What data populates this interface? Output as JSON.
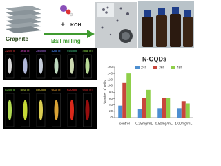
{
  "labels": {
    "graphite": "Graphite",
    "plus": "+",
    "koh": "KOH",
    "process": "Ball milling",
    "product": "N-GQDs",
    "excitation_row1": [
      "325nm",
      "365nm",
      "385nm",
      "425nm",
      "465nm",
      "485nm"
    ],
    "excitation_row2": [
      "535nm",
      "550nm",
      "580nm",
      "600nm",
      "630nm",
      "665nm"
    ]
  },
  "chart_data": {
    "type": "bar",
    "y_label": "Number of cells",
    "categories": [
      "control",
      "0.25mg/mL",
      "0.50mg/mL",
      "1.00mg/mL"
    ],
    "series": [
      {
        "name": "24h",
        "color": "#4e8fd0",
        "values": [
          38,
          27,
          30,
          30
        ]
      },
      {
        "name": "36h",
        "color": "#c8463c",
        "values": [
          110,
          62,
          62,
          52
        ]
      },
      {
        "name": "48h",
        "color": "#8fcf4a",
        "values": [
          140,
          88,
          62,
          45
        ]
      }
    ],
    "ylim": [
      0,
      160
    ],
    "yticks": [
      0,
      20,
      40,
      60,
      80,
      100,
      120,
      140,
      160
    ],
    "legend": "top"
  }
}
